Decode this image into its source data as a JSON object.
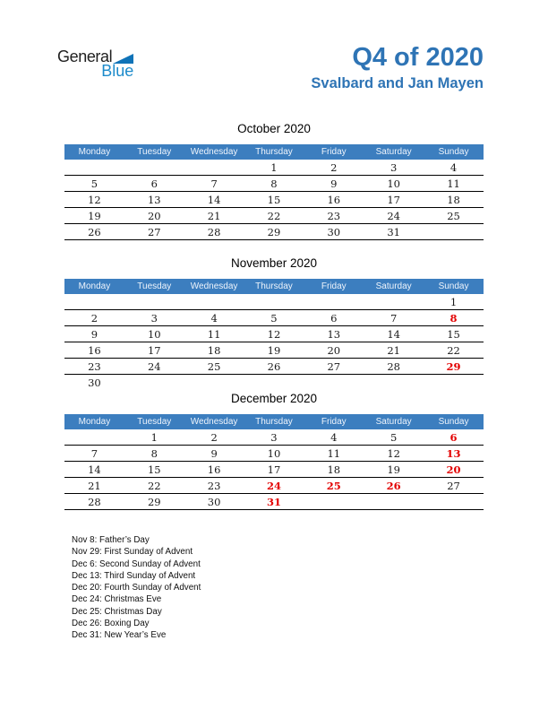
{
  "logo": {
    "line1": "General",
    "line2": "Blue"
  },
  "header": {
    "title": "Q4 of 2020",
    "subtitle": "Svalbard and Jan Mayen"
  },
  "weekdays": [
    "Monday",
    "Tuesday",
    "Wednesday",
    "Thursday",
    "Friday",
    "Saturday",
    "Sunday"
  ],
  "months": [
    {
      "title": "October 2020",
      "holidays": [],
      "rows": [
        [
          "",
          "",
          "",
          "1",
          "2",
          "3",
          "4"
        ],
        [
          "5",
          "6",
          "7",
          "8",
          "9",
          "10",
          "11"
        ],
        [
          "12",
          "13",
          "14",
          "15",
          "16",
          "17",
          "18"
        ],
        [
          "19",
          "20",
          "21",
          "22",
          "23",
          "24",
          "25"
        ],
        [
          "26",
          "27",
          "28",
          "29",
          "30",
          "31",
          ""
        ]
      ]
    },
    {
      "title": "November 2020",
      "holidays": [
        8,
        29
      ],
      "rows": [
        [
          "",
          "",
          "",
          "",
          "",
          "",
          "1"
        ],
        [
          "2",
          "3",
          "4",
          "5",
          "6",
          "7",
          "8"
        ],
        [
          "9",
          "10",
          "11",
          "12",
          "13",
          "14",
          "15"
        ],
        [
          "16",
          "17",
          "18",
          "19",
          "20",
          "21",
          "22"
        ],
        [
          "23",
          "24",
          "25",
          "26",
          "27",
          "28",
          "29"
        ],
        [
          "30",
          "",
          "",
          "",
          "",
          "",
          ""
        ]
      ]
    },
    {
      "title": "December 2020",
      "holidays": [
        6,
        13,
        20,
        24,
        25,
        26,
        31
      ],
      "rows": [
        [
          "",
          "1",
          "2",
          "3",
          "4",
          "5",
          "6"
        ],
        [
          "7",
          "8",
          "9",
          "10",
          "11",
          "12",
          "13"
        ],
        [
          "14",
          "15",
          "16",
          "17",
          "18",
          "19",
          "20"
        ],
        [
          "21",
          "22",
          "23",
          "24",
          "25",
          "26",
          "27"
        ],
        [
          "28",
          "29",
          "30",
          "31",
          "",
          "",
          ""
        ]
      ]
    }
  ],
  "legend": [
    "Nov 8: Father’s Day",
    "Nov 29: First Sunday of Advent",
    "Dec 6: Second Sunday of Advent",
    "Dec 13: Third Sunday of Advent",
    "Dec 20: Fourth Sunday of Advent",
    "Dec 24: Christmas Eve",
    "Dec 25: Christmas Day",
    "Dec 26: Boxing Day",
    "Dec 31: New Year’s Eve"
  ],
  "colors": {
    "title_blue": "#2e74b5",
    "header_bar_blue": "#3c7ebf",
    "holiday_red": "#e30000",
    "logo_text_blue": "#1d8bcb",
    "logo_triangle_blue": "#0f73b8",
    "weekday_text": "#eef4fc"
  }
}
